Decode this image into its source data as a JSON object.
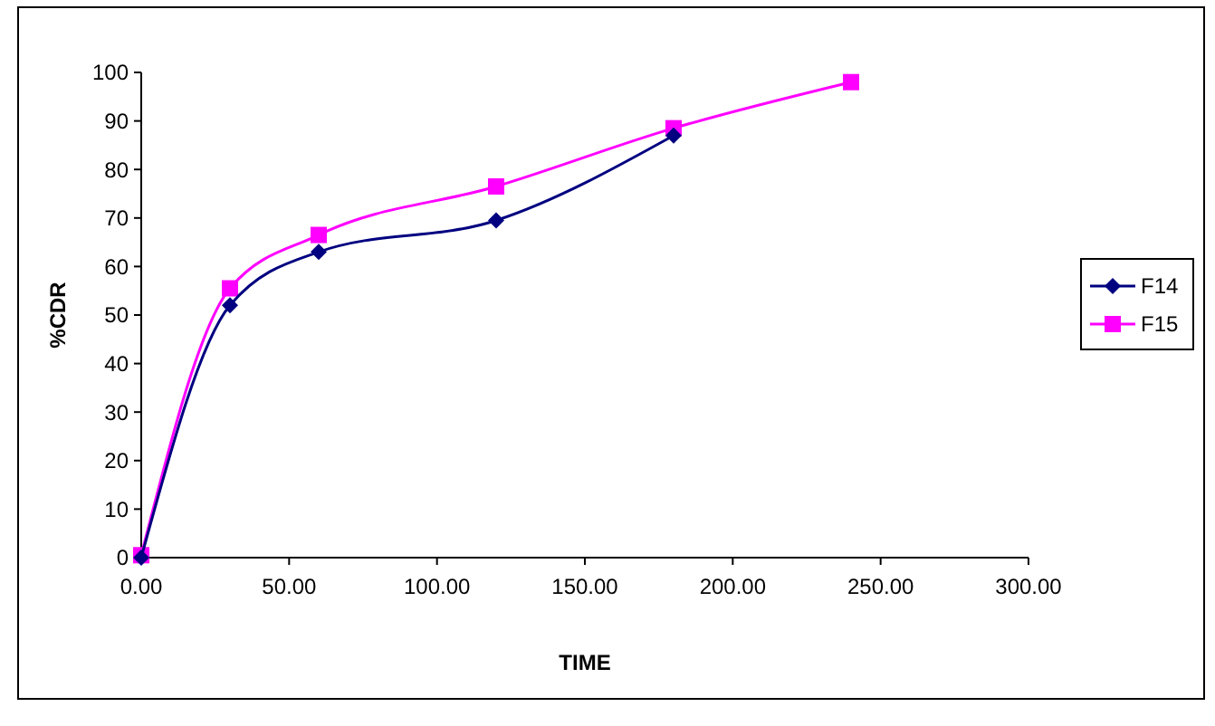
{
  "chart_data": {
    "type": "line",
    "xlabel": "TIME",
    "ylabel": "%CDR",
    "xlim": [
      0,
      300
    ],
    "xticks": [
      {
        "value": 0,
        "label": "0.00"
      },
      {
        "value": 50,
        "label": "50.00"
      },
      {
        "value": 100,
        "label": "100.00"
      },
      {
        "value": 150,
        "label": "150.00"
      },
      {
        "value": 200,
        "label": "200.00"
      },
      {
        "value": 250,
        "label": "250.00"
      },
      {
        "value": 300,
        "label": "300.00"
      }
    ],
    "ylim": [
      0,
      100
    ],
    "yticks": [
      0,
      10,
      20,
      30,
      40,
      50,
      60,
      70,
      80,
      90,
      100
    ],
    "grid": false,
    "legend": "right",
    "series": [
      {
        "name": "F14",
        "color": "#000080",
        "marker": "diamond",
        "x": [
          0,
          30,
          60,
          120,
          180
        ],
        "values": [
          0,
          52,
          63,
          69.5,
          87
        ]
      },
      {
        "name": "F15",
        "color": "#ff00ff",
        "marker": "square",
        "x": [
          0,
          30,
          60,
          120,
          180,
          240
        ],
        "values": [
          0.5,
          55.5,
          66.5,
          76.5,
          88.5,
          98
        ]
      }
    ]
  }
}
